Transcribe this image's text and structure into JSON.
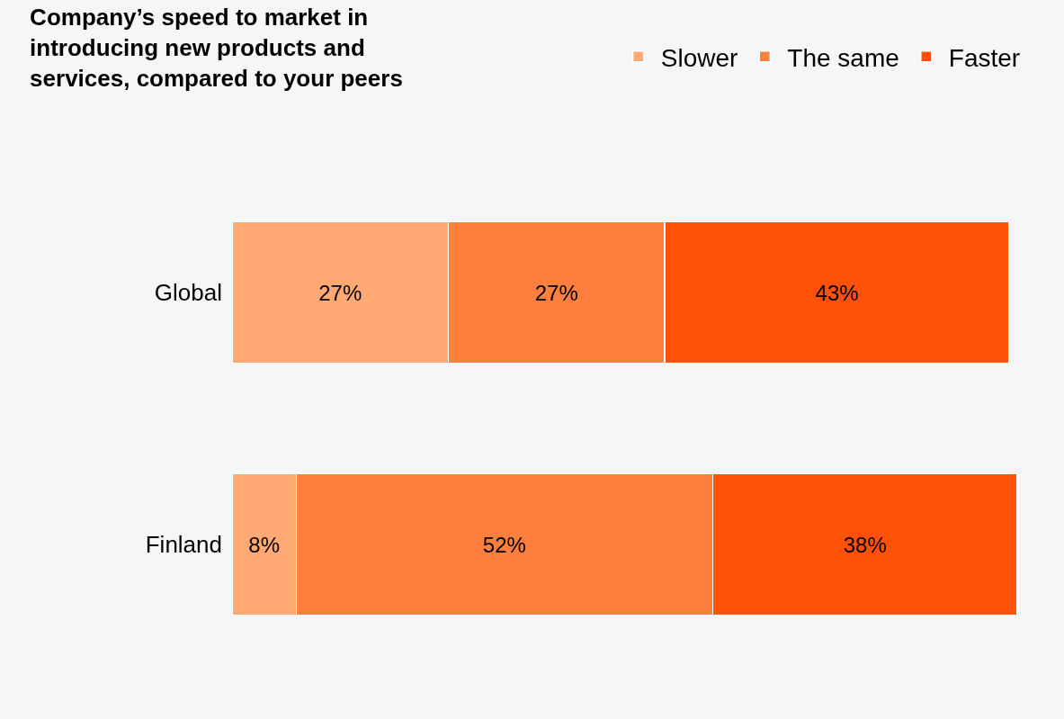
{
  "chart_data": {
    "type": "bar",
    "orientation": "horizontal",
    "stacked": true,
    "title": "Company’s speed to market in introducing new products and services, compared to your peers",
    "categories": [
      "Global",
      "Finland"
    ],
    "xlim": [
      0,
      98
    ],
    "tick_labels": "y",
    "legend": "top right",
    "series": [
      {
        "name": "Slower",
        "color": "#ffa974",
        "values": [
          27,
          8
        ],
        "value_labels": [
          "27%",
          "8%"
        ]
      },
      {
        "name": "The same",
        "color": "#ff7f3f",
        "values": [
          27,
          52
        ],
        "value_labels": [
          "27%",
          "52%"
        ]
      },
      {
        "name": "Faster",
        "color": "#ff5107",
        "values": [
          43,
          38
        ],
        "value_labels": [
          "43%",
          "38%"
        ]
      }
    ]
  }
}
